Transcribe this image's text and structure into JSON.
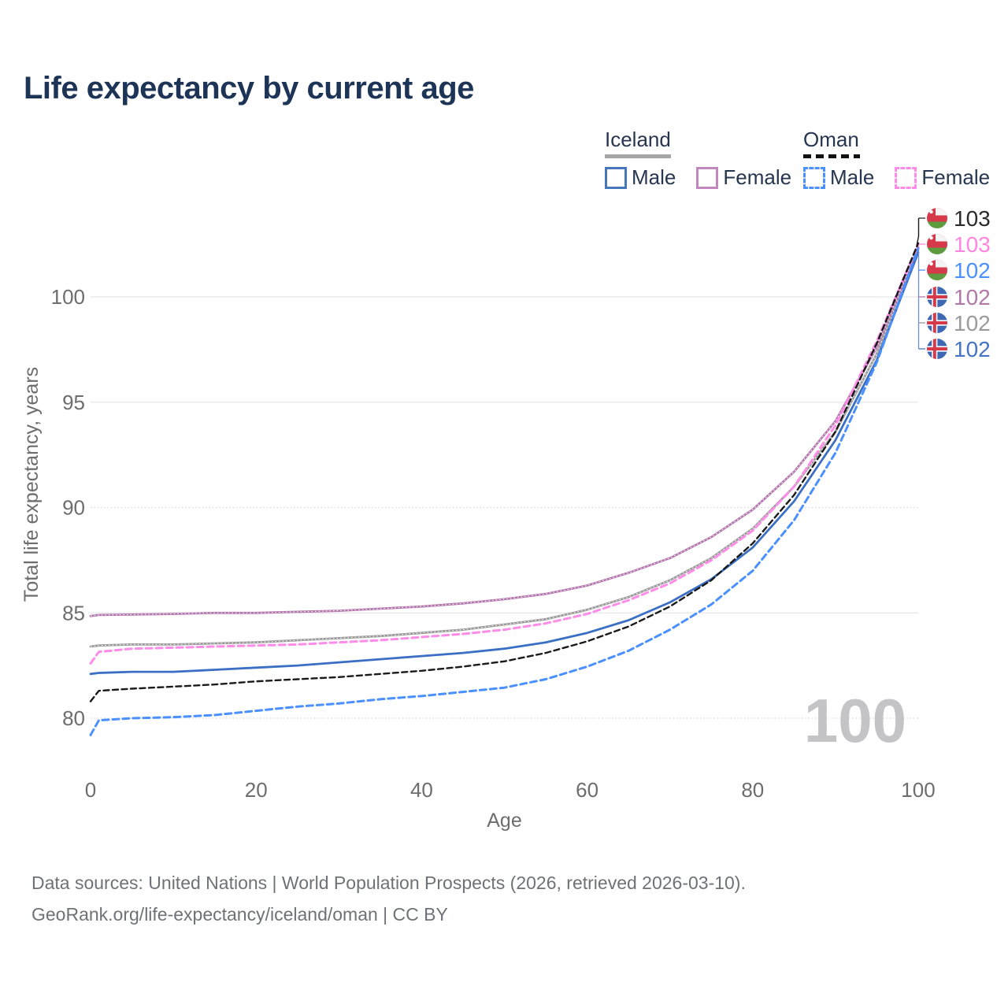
{
  "title": "Life expectancy by current age",
  "legend": {
    "groups": [
      {
        "label": "Iceland",
        "line_style": "solid",
        "underline_color": "#a6a6a6",
        "items": [
          {
            "label": "Male",
            "color": "#4477bb",
            "dashed": false
          },
          {
            "label": "Female",
            "color": "#c287bd",
            "dashed": false
          }
        ]
      },
      {
        "label": "Oman",
        "line_style": "dashed",
        "underline_color": "#111111",
        "items": [
          {
            "label": "Male",
            "color": "#4a90ff",
            "dashed": true
          },
          {
            "label": "Female",
            "color": "#ff8ce8",
            "dashed": true
          }
        ]
      }
    ]
  },
  "chart_data": {
    "type": "line",
    "title": "Life expectancy by current age",
    "xlabel": "Age",
    "ylabel": "Total life expectancy, years",
    "x_ticks": [
      0,
      20,
      40,
      60,
      80,
      100
    ],
    "y_ticks": [
      80,
      85,
      90,
      95,
      100
    ],
    "dotted_gridlines": [
      80,
      90
    ],
    "xlim": [
      0,
      100
    ],
    "ylim": [
      78,
      103.5
    ],
    "grid": true,
    "legend_position": "top-right",
    "watermark": "100",
    "x": [
      0,
      1,
      5,
      10,
      15,
      20,
      25,
      30,
      35,
      40,
      45,
      50,
      55,
      60,
      65,
      70,
      75,
      80,
      85,
      90,
      95,
      100
    ],
    "series": [
      {
        "name": "Iceland Total",
        "country": "iceland",
        "sex": "total",
        "color": "#9b9b9b",
        "dashed": false,
        "overlay_dots": true,
        "values": [
          83.4,
          83.45,
          83.5,
          83.5,
          83.55,
          83.6,
          83.7,
          83.8,
          83.9,
          84.05,
          84.2,
          84.45,
          84.7,
          85.15,
          85.75,
          86.55,
          87.6,
          89.0,
          91.0,
          93.6,
          97.3,
          102.25
        ]
      },
      {
        "name": "Iceland Female",
        "country": "iceland",
        "sex": "female",
        "color": "#b478ae",
        "dashed": false,
        "overlay_dots": true,
        "values": [
          84.85,
          84.9,
          84.92,
          84.95,
          85.0,
          85.0,
          85.05,
          85.1,
          85.2,
          85.3,
          85.45,
          85.65,
          85.9,
          86.3,
          86.9,
          87.6,
          88.6,
          89.9,
          91.7,
          94.1,
          97.6,
          102.35
        ]
      },
      {
        "name": "Oman Female",
        "country": "oman",
        "sex": "female",
        "color": "#ff8ce8",
        "dashed": true,
        "overlay_dots": false,
        "values": [
          82.6,
          83.15,
          83.3,
          83.35,
          83.4,
          83.45,
          83.5,
          83.6,
          83.7,
          83.85,
          84.0,
          84.2,
          84.5,
          84.95,
          85.6,
          86.4,
          87.5,
          88.9,
          91.0,
          93.9,
          97.9,
          102.5
        ]
      },
      {
        "name": "Iceland Male",
        "country": "iceland",
        "sex": "male",
        "color": "#3a6fc4",
        "dashed": false,
        "overlay_dots": false,
        "values": [
          82.1,
          82.15,
          82.2,
          82.2,
          82.3,
          82.4,
          82.5,
          82.65,
          82.8,
          82.95,
          83.1,
          83.3,
          83.6,
          84.05,
          84.65,
          85.5,
          86.6,
          88.1,
          90.3,
          93.2,
          97.0,
          102.1
        ]
      },
      {
        "name": "Oman Total",
        "country": "oman",
        "sex": "total",
        "color": "#1a1a1a",
        "dashed": true,
        "overlay_dots": false,
        "values": [
          80.8,
          81.3,
          81.4,
          81.5,
          81.6,
          81.75,
          81.85,
          81.95,
          82.1,
          82.25,
          82.45,
          82.7,
          83.1,
          83.65,
          84.35,
          85.3,
          86.55,
          88.3,
          90.6,
          93.6,
          97.8,
          102.55
        ]
      },
      {
        "name": "Oman Male",
        "country": "oman",
        "sex": "male",
        "color": "#4a90ff",
        "dashed": true,
        "overlay_dots": false,
        "values": [
          79.2,
          79.9,
          80.0,
          80.05,
          80.15,
          80.35,
          80.55,
          80.7,
          80.9,
          81.05,
          81.25,
          81.45,
          81.85,
          82.45,
          83.2,
          84.2,
          85.4,
          87.0,
          89.4,
          92.6,
          96.9,
          102.3
        ]
      }
    ],
    "end_labels": [
      {
        "flag": "oman",
        "text": "103",
        "color": "#2b2b2b"
      },
      {
        "flag": "oman",
        "text": "103",
        "color": "#ff85e0"
      },
      {
        "flag": "oman",
        "text": "102",
        "color": "#4a90ff"
      },
      {
        "flag": "iceland",
        "text": "102",
        "color": "#b07aa8"
      },
      {
        "flag": "iceland",
        "text": "102",
        "color": "#9a9a9a"
      },
      {
        "flag": "iceland",
        "text": "102",
        "color": "#4472c4"
      }
    ]
  },
  "footer": {
    "line1": "Data sources: United Nations | World Population Prospects (2026, retrieved 2026-03-10).",
    "line2": "GeoRank.org/life-expectancy/iceland/oman | CC BY"
  }
}
